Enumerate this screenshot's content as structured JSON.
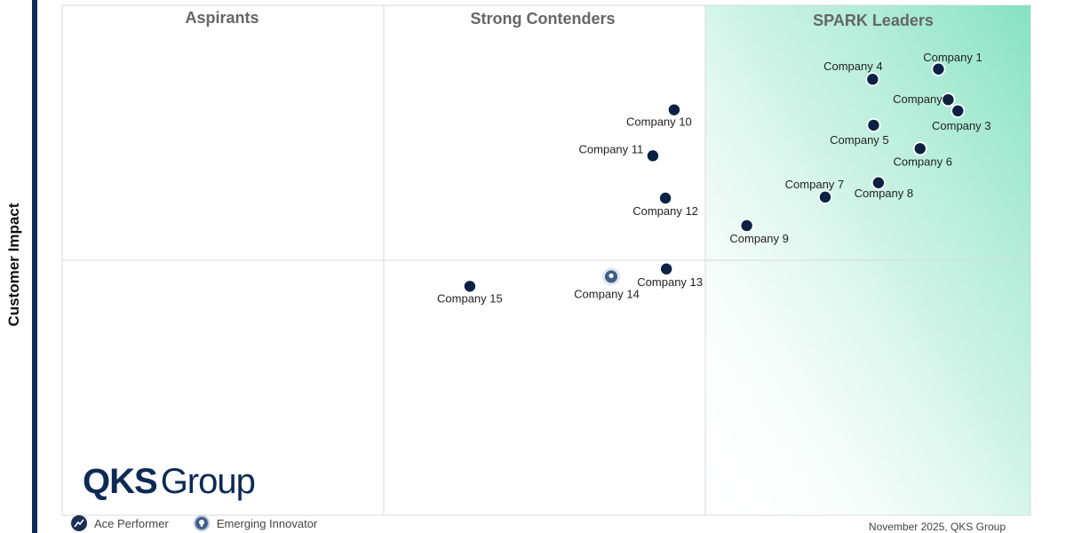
{
  "chart_data": {
    "type": "scatter",
    "ylabel": "Customer Impact",
    "xlabel": "",
    "quadrants": {
      "aspirants": "Aspirants",
      "strong_contenders": "Strong Contenders",
      "spark_leaders": "SPARK Leaders"
    },
    "xlim": [
      0,
      100
    ],
    "ylim": [
      0,
      100
    ],
    "points": [
      {
        "label": "Company 1",
        "x": 90.5,
        "y": 87.5,
        "kind": "standard"
      },
      {
        "label": "Company 2",
        "x": 91.5,
        "y": 81.5,
        "kind": "standard"
      },
      {
        "label": "Company 3",
        "x": 92.5,
        "y": 79.3,
        "kind": "standard"
      },
      {
        "label": "Company 4",
        "x": 83.7,
        "y": 85.5,
        "kind": "standard"
      },
      {
        "label": "Company 5",
        "x": 83.8,
        "y": 76.5,
        "kind": "standard"
      },
      {
        "label": "Company 6",
        "x": 88.6,
        "y": 71.9,
        "kind": "standard"
      },
      {
        "label": "Company 7",
        "x": 78.8,
        "y": 62.4,
        "kind": "standard"
      },
      {
        "label": "Company 8",
        "x": 84.3,
        "y": 65.2,
        "kind": "standard"
      },
      {
        "label": "Company 9",
        "x": 70.7,
        "y": 56.8,
        "kind": "standard"
      },
      {
        "label": "Company 10",
        "x": 63.2,
        "y": 79.5,
        "kind": "standard"
      },
      {
        "label": "Company 11",
        "x": 61.0,
        "y": 70.5,
        "kind": "standard"
      },
      {
        "label": "Company 12",
        "x": 62.3,
        "y": 62.2,
        "kind": "standard"
      },
      {
        "label": "Company 13",
        "x": 62.4,
        "y": 48.3,
        "kind": "standard"
      },
      {
        "label": "Company 14",
        "x": 56.7,
        "y": 46.8,
        "kind": "emerging"
      },
      {
        "label": "Company 15",
        "x": 42.1,
        "y": 44.9,
        "kind": "standard"
      }
    ]
  },
  "branding": {
    "logo_bold": "QKS",
    "logo_rest": "Group"
  },
  "legend": {
    "ace_performer": "Ace Performer",
    "emerging_innovator": "Emerging Innovator"
  },
  "footer": {
    "date": "November 2025, QKS Group"
  },
  "colors": {
    "marker": "#0b2245",
    "marker_emerging": "#3d5f8a",
    "leaders_gradient": "#7fe0c0",
    "grid": "#d9d9d9",
    "left_bar": "#0b2d5b"
  }
}
